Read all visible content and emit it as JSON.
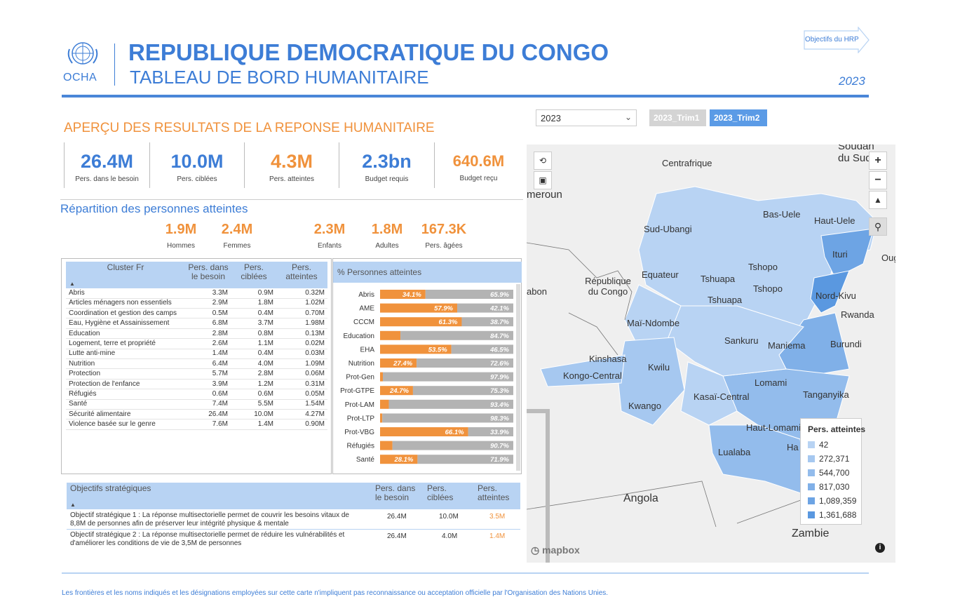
{
  "header": {
    "logo_text": "OCHA",
    "title": "REPUBLIQUE DEMOCRATIQUE DU CONGO",
    "subtitle": "TABLEAU DE BORD HUMANITAIRE",
    "year": "2023",
    "hrp_button": "Objectifs du HRP"
  },
  "filters": {
    "year_value": "2023",
    "trim1": "2023_Trim1",
    "trim2": "2023_Trim2"
  },
  "section_title": "APERÇU DES RESULTATS DE LA REPONSE HUMANITAIRE",
  "kpis": [
    {
      "value": "26.4M",
      "label": "Pers. dans le besoin"
    },
    {
      "value": "10.0M",
      "label": "Pers. ciblées"
    },
    {
      "value": "4.3M",
      "label": "Pers. atteintes"
    },
    {
      "value": "2.3bn",
      "label": "Budget requis"
    },
    {
      "value": "640.6M",
      "label": "Budget reçu"
    }
  ],
  "repartition": {
    "title": "Répartition des personnes atteintes",
    "items": [
      {
        "value": "1.9M",
        "label": "Hommes"
      },
      {
        "value": "2.4M",
        "label": "Femmes"
      },
      {
        "value": "2.3M",
        "label": "Enfants"
      },
      {
        "value": "1.8M",
        "label": "Adultes"
      },
      {
        "value": "167.3K",
        "label": "Pers. âgées"
      }
    ]
  },
  "cluster_table": {
    "headers": [
      "Cluster Fr",
      "Pers. dans le besoin",
      "Pers. ciblées",
      "Pers. atteintes"
    ],
    "rows": [
      [
        "Abris",
        "3.3M",
        "0.9M",
        "0.32M"
      ],
      [
        "Articles ménagers non essentiels",
        "2.9M",
        "1.8M",
        "1.02M"
      ],
      [
        "Coordination et gestion des camps",
        "0.5M",
        "0.4M",
        "0.70M"
      ],
      [
        "Eau, Hygiène et Assainissement",
        "6.8M",
        "3.7M",
        "1.98M"
      ],
      [
        "Education",
        "2.8M",
        "0.8M",
        "0.13M"
      ],
      [
        "Logement, terre et propriété",
        "2.6M",
        "1.1M",
        "0.02M"
      ],
      [
        "Lutte anti-mine",
        "1.4M",
        "0.4M",
        "0.03M"
      ],
      [
        "Nutrition",
        "6.4M",
        "4.0M",
        "1.09M"
      ],
      [
        "Protection",
        "5.7M",
        "2.8M",
        "0.06M"
      ],
      [
        "Protection de l'enfance",
        "3.9M",
        "1.2M",
        "0.31M"
      ],
      [
        "Réfugiés",
        "0.6M",
        "0.6M",
        "0.05M"
      ],
      [
        "Santé",
        "7.4M",
        "5.5M",
        "1.54M"
      ],
      [
        "Sécurité alimentaire",
        "26.4M",
        "10.0M",
        "4.27M"
      ],
      [
        "Violence basée sur le genre",
        "7.6M",
        "1.4M",
        "0.90M"
      ]
    ]
  },
  "chart_data": {
    "type": "bar",
    "title": "% Personnes atteintes",
    "categories": [
      "Abris",
      "AME",
      "CCCM",
      "Education",
      "EHA",
      "Nutrition",
      "Prot-Gen",
      "Prot-GTPE",
      "Prot-LAM",
      "Prot-LTP",
      "Prot-VBG",
      "Réfugiés",
      "Santé"
    ],
    "series": [
      {
        "values": [
          34.1,
          57.9,
          61.3,
          15.3,
          53.5,
          27.4,
          2.1,
          24.7,
          6.6,
          1.7,
          66.1,
          9.3,
          28.1
        ]
      },
      {
        "values": [
          65.9,
          42.1,
          38.7,
          84.7,
          46.5,
          72.6,
          97.9,
          75.3,
          93.4,
          98.3,
          33.9,
          90.7,
          71.9
        ]
      }
    ],
    "labels_atteint": [
      "34.1%",
      "57.9%",
      "61.3%",
      "",
      "53.5%",
      "27.4%",
      "",
      "24.7%",
      "",
      "",
      "66.1%",
      "",
      "28.1%"
    ],
    "labels_reste": [
      "65.9%",
      "42.1%",
      "38.7%",
      "84.7%",
      "46.5%",
      "72.6%",
      "97.9%",
      "75.3%",
      "93.4%",
      "98.3%",
      "33.9%",
      "90.7%",
      "71.9%"
    ],
    "colors": [
      "#f0923c",
      "#b3b3b3"
    ],
    "stacked": true,
    "orientation": "horizontal",
    "xlim": [
      0,
      100
    ]
  },
  "objectives": {
    "headers": [
      "Objectifs stratégiques",
      "Pers. dans le besoin",
      "Pers. ciblées",
      "Pers. atteintes"
    ],
    "rows": [
      {
        "text": "Objectif stratégique 1 : La réponse multisectorielle permet de couvrir les besoins vitaux de 8,8M de personnes afin de préserver leur intégrité physique & mentale",
        "besoin": "26.4M",
        "ciblees": "10.0M",
        "atteintes": "3.5M"
      },
      {
        "text": "Objectif stratégique 2 : La réponse multisectorielle permet de réduire les vulnérabilités et d'améliorer les conditions de vie de 3,5M de personnes",
        "besoin": "26.4M",
        "ciblees": "4.0M",
        "atteintes": "1.4M"
      }
    ]
  },
  "map": {
    "labels": [
      "Centrafrique",
      "Soudan du Sud",
      "meroun",
      "Bas-Uele",
      "Haut-Uele",
      "Sud-Ubangi",
      "Ituri",
      "Oug",
      "Tshopo",
      "Equateur",
      "Tshuapa",
      "République du Congo",
      "abon",
      "Nord-Kivu",
      "Rwanda",
      "Maï-Ndombe",
      "Sankuru",
      "Maniema",
      "Burundi",
      "Kinshasa",
      "Kwilu",
      "Kongo-Central",
      "Lomami",
      "Tanganyika",
      "Kwango",
      "Kasaï-Central",
      "Haut-Lomami",
      "Lualaba",
      "Ha",
      "Angola",
      "Zambie"
    ],
    "legend_title": "Pers. atteintes",
    "legend": [
      {
        "label": "42",
        "color": "#b8d3f3"
      },
      {
        "label": "272,371",
        "color": "#a6c8f0"
      },
      {
        "label": "544,700",
        "color": "#93bcec"
      },
      {
        "label": "817,030",
        "color": "#80b0e8"
      },
      {
        "label": "1,089,359",
        "color": "#6da4e4"
      },
      {
        "label": "1,361,688",
        "color": "#5a98e0"
      }
    ],
    "attribution": "mapbox",
    "zoom_in": "+",
    "zoom_out": "−"
  },
  "footer": {
    "disclaimer": "Les frontières et les noms indiqués et les désignations employées sur cette carte n'impliquent pas reconnaissance ou acceptation officielle par l'Organisation des Nations Unies."
  }
}
